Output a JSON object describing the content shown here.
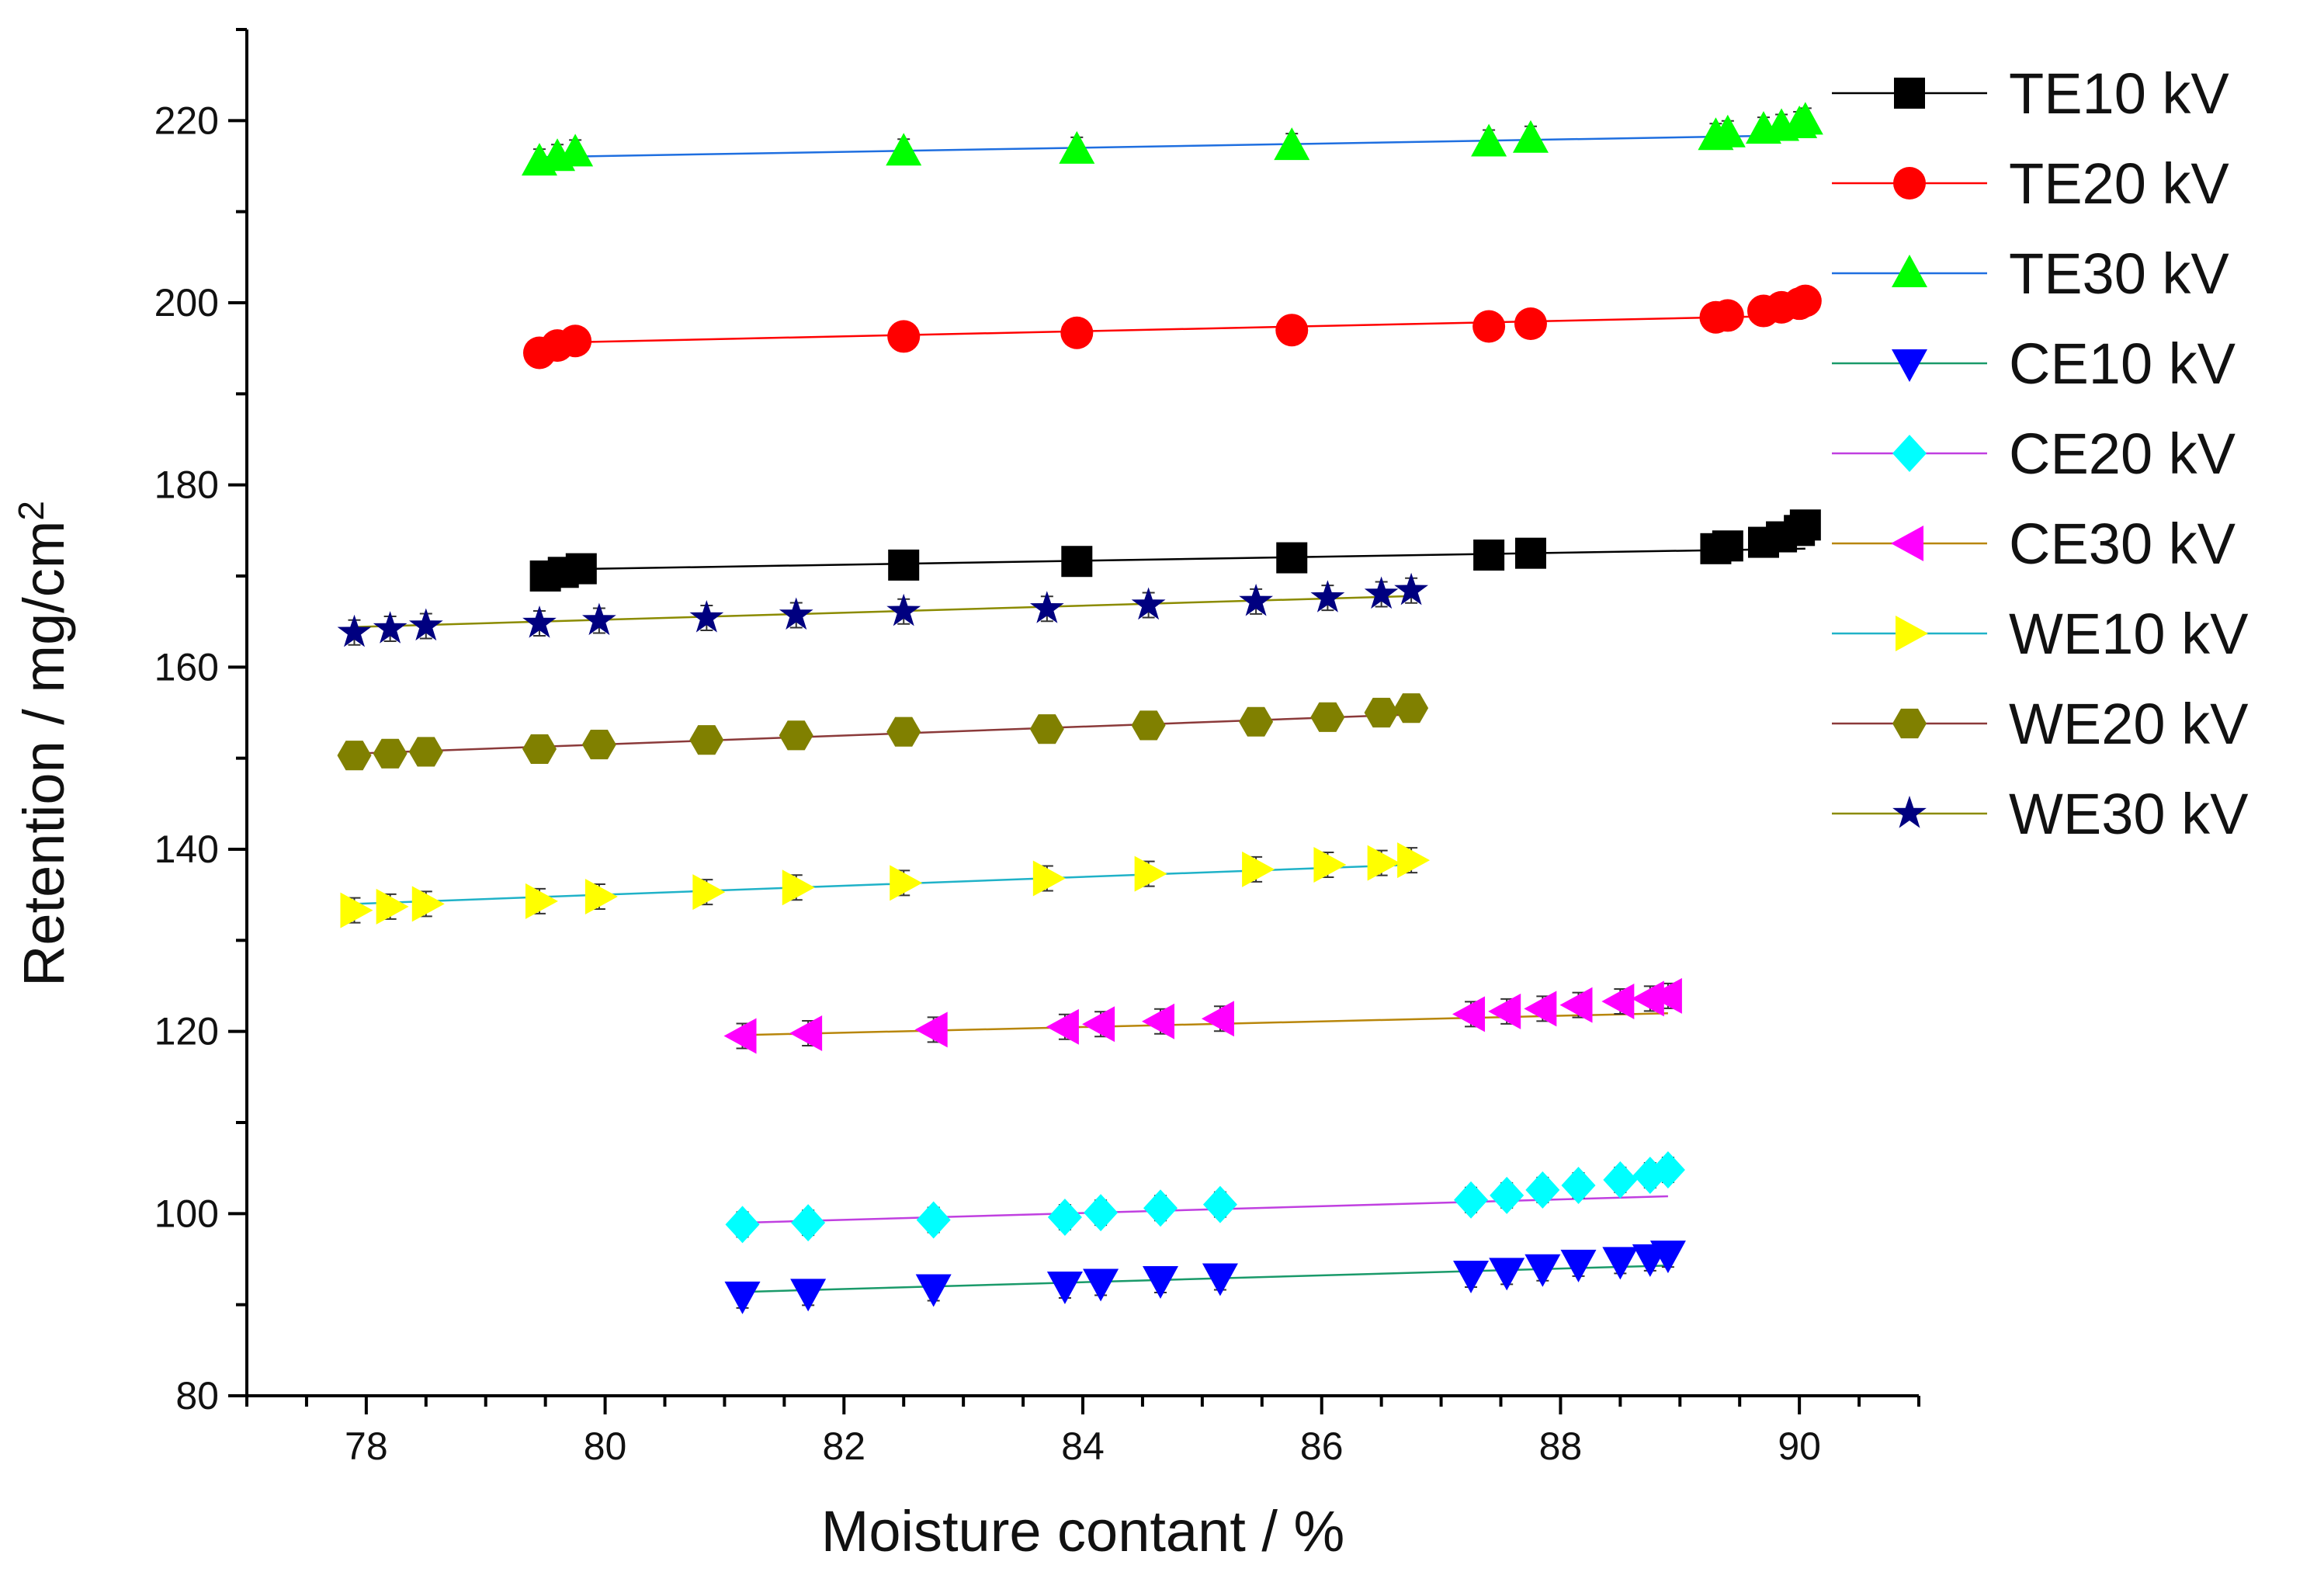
{
  "chart_data": {
    "type": "scatter",
    "title": "",
    "xlabel": "Moisture contant / %",
    "ylabel": {
      "base": "Retention / mg/cm",
      "superscript": "2"
    },
    "xlim": [
      77,
      91
    ],
    "ylim": [
      80,
      230
    ],
    "xticks": [
      78,
      80,
      82,
      84,
      86,
      88,
      90
    ],
    "yticks": [
      80,
      100,
      120,
      140,
      160,
      180,
      200,
      220
    ],
    "x_minor_step": 0.5,
    "y_minor_step": 10,
    "legend_position": "top-right",
    "series": [
      {
        "name": "TE10 kV",
        "marker": "square",
        "color": "#000000",
        "line_color": "#000000",
        "x": [
          79.5,
          79.65,
          79.8,
          82.5,
          83.95,
          85.75,
          87.4,
          87.75,
          89.3,
          89.4,
          89.7,
          89.85,
          90.0,
          90.05
        ],
        "y": [
          170.0,
          170.4,
          170.8,
          171.2,
          171.6,
          172.0,
          172.3,
          172.5,
          173.0,
          173.3,
          173.7,
          174.3,
          175.0,
          175.6
        ],
        "fit": [
          [
            79.5,
            170.7
          ],
          [
            90.05,
            173.0
          ]
        ]
      },
      {
        "name": "TE20 kV",
        "marker": "circle",
        "color": "#ff0000",
        "line_color": "#ff0000",
        "x": [
          79.45,
          79.6,
          79.75,
          82.5,
          83.95,
          85.75,
          87.4,
          87.75,
          89.3,
          89.4,
          89.7,
          89.85,
          90.0,
          90.05
        ],
        "y": [
          194.5,
          195.3,
          195.8,
          196.3,
          196.7,
          197.0,
          197.4,
          197.7,
          198.4,
          198.6,
          199.1,
          199.5,
          199.9,
          200.2
        ],
        "fit": [
          [
            79.5,
            195.6
          ],
          [
            90.05,
            198.6
          ]
        ]
      },
      {
        "name": "TE30 kV",
        "marker": "triangle-up",
        "color": "#00ff00",
        "line_color": "#1f6fe0",
        "x": [
          79.45,
          79.6,
          79.75,
          82.5,
          83.95,
          85.75,
          87.4,
          87.75,
          89.3,
          89.4,
          89.7,
          89.85,
          90.0,
          90.05
        ],
        "y": [
          215.5,
          216.0,
          216.5,
          216.6,
          216.8,
          217.2,
          217.6,
          218.0,
          218.3,
          218.6,
          219.0,
          219.3,
          219.6,
          220.0
        ],
        "fit": [
          [
            79.5,
            216.0
          ],
          [
            90.05,
            218.4
          ]
        ]
      },
      {
        "name": "CE10 kV",
        "marker": "triangle-down",
        "color": "#0000ff",
        "line_color": "#1a9a6a",
        "x": [
          81.15,
          81.7,
          82.75,
          83.85,
          84.15,
          84.65,
          85.15,
          87.25,
          87.55,
          87.85,
          88.15,
          88.5,
          88.75,
          88.9
        ],
        "y": [
          91.0,
          91.3,
          91.8,
          92.1,
          92.4,
          92.7,
          93.0,
          93.3,
          93.6,
          94.0,
          94.5,
          94.8,
          95.1,
          95.5
        ],
        "fit": [
          [
            81.15,
            91.4
          ],
          [
            88.9,
            94.3
          ]
        ]
      },
      {
        "name": "CE20 kV",
        "marker": "diamond",
        "color": "#00ffff",
        "line_color": "#c040e0",
        "x": [
          81.15,
          81.7,
          82.75,
          83.85,
          84.15,
          84.65,
          85.15,
          87.25,
          87.55,
          87.85,
          88.15,
          88.5,
          88.75,
          88.9
        ],
        "y": [
          98.8,
          99.0,
          99.3,
          99.6,
          100.1,
          100.6,
          101.0,
          101.5,
          102.0,
          102.6,
          103.1,
          103.7,
          104.2,
          104.8
        ],
        "fit": [
          [
            81.15,
            99.0
          ],
          [
            88.9,
            101.9
          ]
        ]
      },
      {
        "name": "CE30 kV",
        "marker": "triangle-left",
        "color": "#ff00ff",
        "line_color": "#b8860b",
        "x": [
          81.15,
          81.7,
          82.75,
          83.85,
          84.15,
          84.65,
          85.15,
          87.25,
          87.55,
          87.85,
          88.15,
          88.5,
          88.75,
          88.9
        ],
        "y": [
          119.5,
          119.8,
          120.2,
          120.5,
          120.8,
          121.1,
          121.4,
          121.9,
          122.2,
          122.5,
          122.9,
          123.3,
          123.6,
          123.9
        ],
        "fit": [
          [
            81.15,
            119.6
          ],
          [
            88.9,
            122.0
          ]
        ]
      },
      {
        "name": "WE10 kV",
        "marker": "triangle-right",
        "color": "#ffff00",
        "line_color": "#20b2c8",
        "x": [
          77.9,
          78.2,
          78.5,
          79.45,
          79.95,
          80.85,
          81.6,
          82.5,
          83.7,
          84.55,
          85.45,
          86.05,
          86.5,
          86.75
        ],
        "y": [
          133.3,
          133.7,
          134.0,
          134.3,
          134.8,
          135.3,
          135.8,
          136.3,
          136.8,
          137.3,
          137.8,
          138.3,
          138.5,
          138.8
        ],
        "fit": [
          [
            77.9,
            134.0
          ],
          [
            86.75,
            138.3
          ]
        ]
      },
      {
        "name": "WE20 kV",
        "marker": "hexagon",
        "color": "#808000",
        "line_color": "#8b3a3a",
        "x": [
          77.9,
          78.2,
          78.5,
          79.45,
          79.95,
          80.85,
          81.6,
          82.5,
          83.7,
          84.55,
          85.45,
          86.05,
          86.5,
          86.75
        ],
        "y": [
          150.3,
          150.5,
          150.7,
          151.0,
          151.5,
          152.0,
          152.5,
          152.9,
          153.2,
          153.6,
          154.0,
          154.5,
          155.0,
          155.5
        ],
        "fit": [
          [
            77.9,
            150.5
          ],
          [
            86.75,
            154.8
          ]
        ]
      },
      {
        "name": "WE30 kV",
        "marker": "star",
        "color": "#000080",
        "line_color": "#8b8b00",
        "x": [
          77.9,
          78.2,
          78.5,
          79.45,
          79.95,
          80.85,
          81.6,
          82.5,
          83.7,
          84.55,
          85.45,
          86.05,
          86.5,
          86.75
        ],
        "y": [
          163.8,
          164.2,
          164.5,
          164.8,
          165.1,
          165.4,
          165.7,
          166.1,
          166.4,
          166.8,
          167.2,
          167.6,
          168.0,
          168.4
        ],
        "fit": [
          [
            77.9,
            164.4
          ],
          [
            86.75,
            167.8
          ]
        ]
      }
    ]
  }
}
